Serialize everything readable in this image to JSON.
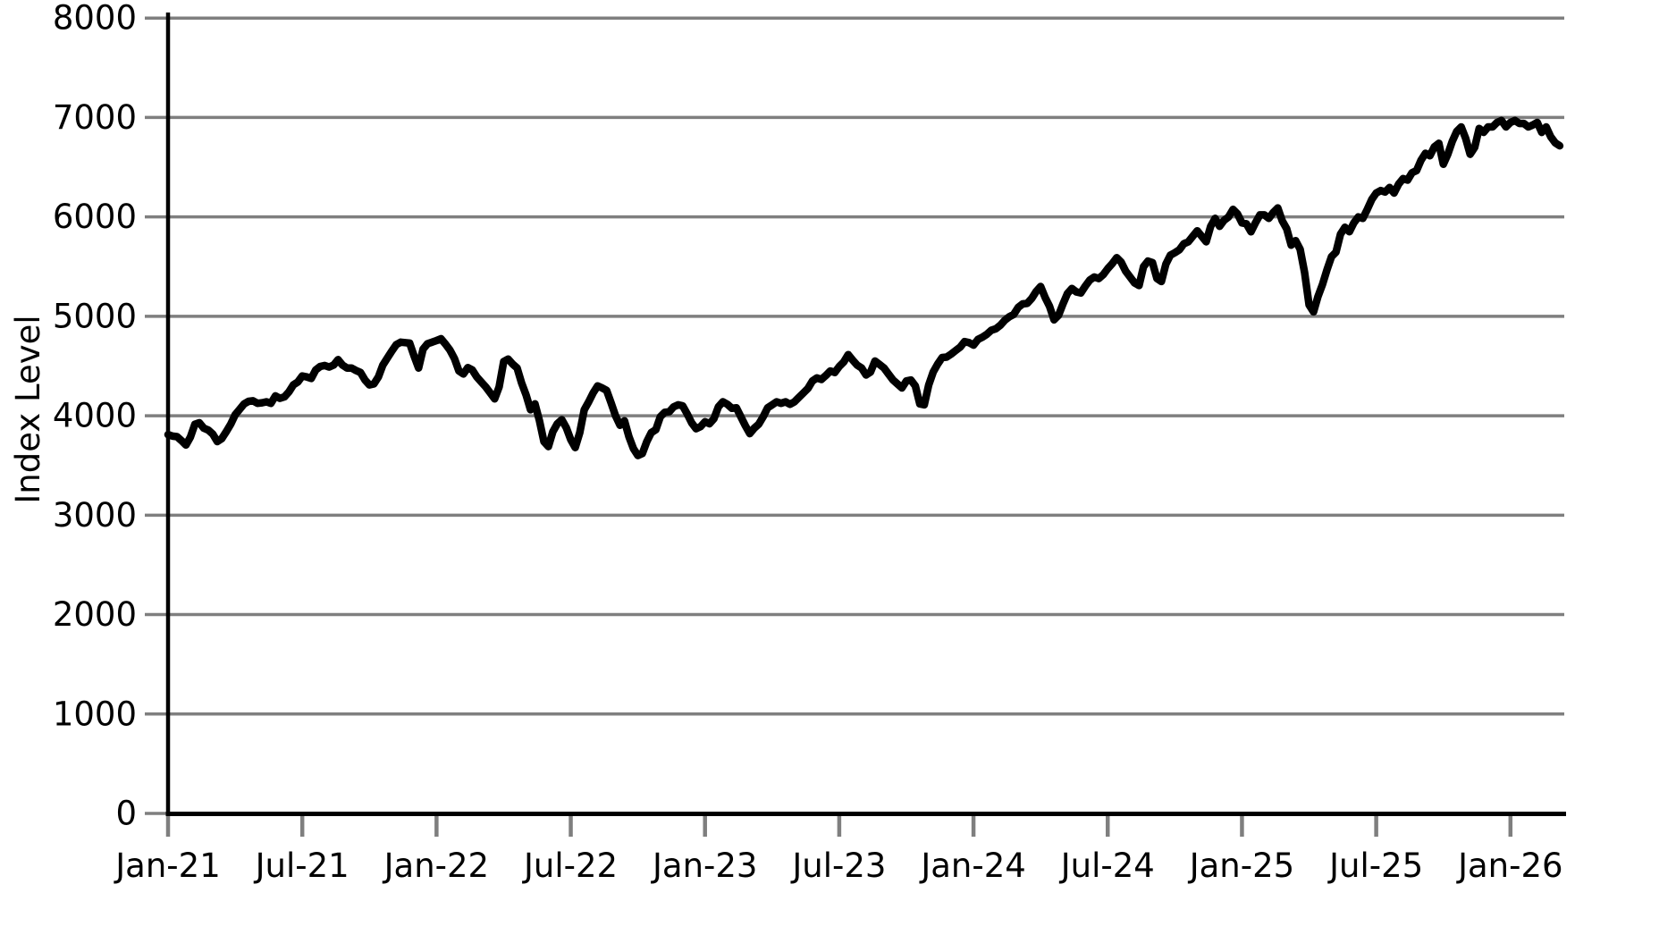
{
  "chart_data": {
    "type": "line",
    "title": "",
    "xlabel": "",
    "ylabel": "Index Level",
    "background_color": "#ffffff",
    "line_color": "#000000",
    "grid_color": "#7f7f7f",
    "text_color": "#000000",
    "grid": "horizontal-only",
    "legend": "none",
    "ylim": [
      0,
      8000
    ],
    "y_ticks": [
      0,
      1000,
      2000,
      3000,
      4000,
      5000,
      6000,
      7000,
      8000
    ],
    "xlim_months": [
      0,
      62.4
    ],
    "x_ticks": [
      {
        "months": 0,
        "label": "Jan-21"
      },
      {
        "months": 6,
        "label": "Jul-21"
      },
      {
        "months": 12,
        "label": "Jan-22"
      },
      {
        "months": 18,
        "label": "Jul-22"
      },
      {
        "months": 24,
        "label": "Jan-23"
      },
      {
        "months": 30,
        "label": "Jul-23"
      },
      {
        "months": 36,
        "label": "Jan-24"
      },
      {
        "months": 42,
        "label": "Jul-24"
      },
      {
        "months": 48,
        "label": "Jan-25"
      },
      {
        "months": 54,
        "label": "Jul-25"
      },
      {
        "months": 60,
        "label": "Jan-26"
      }
    ],
    "series": [
      {
        "name": "Index Level",
        "t_start_months": 0,
        "t_step_months": 0.2,
        "values": [
          3810,
          3795,
          3790,
          3750,
          3705,
          3785,
          3915,
          3930,
          3875,
          3855,
          3815,
          3740,
          3770,
          3840,
          3915,
          4010,
          4065,
          4120,
          4145,
          4150,
          4125,
          4130,
          4140,
          4125,
          4200,
          4175,
          4190,
          4240,
          4310,
          4340,
          4400,
          4390,
          4375,
          4460,
          4495,
          4505,
          4490,
          4510,
          4565,
          4510,
          4480,
          4480,
          4455,
          4435,
          4360,
          4310,
          4320,
          4390,
          4510,
          4580,
          4650,
          4715,
          4740,
          4735,
          4730,
          4600,
          4480,
          4670,
          4725,
          4740,
          4756,
          4774,
          4720,
          4660,
          4575,
          4450,
          4420,
          4485,
          4460,
          4390,
          4340,
          4290,
          4230,
          4170,
          4290,
          4545,
          4570,
          4520,
          4480,
          4330,
          4210,
          4060,
          4120,
          3950,
          3740,
          3690,
          3840,
          3920,
          3960,
          3880,
          3760,
          3680,
          3830,
          4060,
          4140,
          4230,
          4300,
          4280,
          4255,
          4130,
          4000,
          3905,
          3950,
          3790,
          3670,
          3600,
          3620,
          3740,
          3830,
          3860,
          3990,
          4035,
          4040,
          4090,
          4110,
          4100,
          4020,
          3930,
          3870,
          3890,
          3940,
          3920,
          3970,
          4090,
          4140,
          4115,
          4075,
          4080,
          3990,
          3900,
          3820,
          3875,
          3915,
          3990,
          4080,
          4110,
          4140,
          4125,
          4140,
          4115,
          4140,
          4185,
          4230,
          4275,
          4350,
          4380,
          4365,
          4405,
          4450,
          4435,
          4495,
          4540,
          4615,
          4560,
          4510,
          4480,
          4410,
          4440,
          4550,
          4515,
          4480,
          4420,
          4360,
          4320,
          4280,
          4350,
          4360,
          4300,
          4120,
          4110,
          4310,
          4440,
          4520,
          4585,
          4590,
          4620,
          4655,
          4690,
          4745,
          4735,
          4710,
          4768,
          4790,
          4820,
          4860,
          4875,
          4910,
          4960,
          4995,
          5020,
          5090,
          5125,
          5130,
          5180,
          5250,
          5300,
          5190,
          5100,
          4965,
          5010,
          5125,
          5230,
          5280,
          5245,
          5235,
          5305,
          5365,
          5395,
          5380,
          5420,
          5480,
          5530,
          5590,
          5545,
          5455,
          5395,
          5335,
          5310,
          5500,
          5555,
          5540,
          5380,
          5350,
          5525,
          5615,
          5640,
          5670,
          5730,
          5750,
          5805,
          5860,
          5805,
          5750,
          5905,
          5985,
          5905,
          5965,
          6000,
          6075,
          6030,
          5940,
          5930,
          5850,
          5940,
          6020,
          6020,
          5985,
          6045,
          6090,
          5960,
          5880,
          5715,
          5760,
          5675,
          5440,
          5115,
          5045,
          5200,
          5320,
          5470,
          5600,
          5645,
          5825,
          5895,
          5850,
          5940,
          6000,
          5985,
          6075,
          6175,
          6240,
          6265,
          6250,
          6295,
          6240,
          6330,
          6385,
          6370,
          6445,
          6465,
          6570,
          6640,
          6615,
          6705,
          6740,
          6530,
          6630,
          6760,
          6860,
          6905,
          6790,
          6630,
          6700,
          6890,
          6850,
          6905,
          6905,
          6950,
          6970,
          6905,
          6950,
          6970,
          6940,
          6940,
          6905,
          6925,
          6950,
          6850,
          6905,
          6805,
          6745,
          6715
        ]
      }
    ]
  }
}
